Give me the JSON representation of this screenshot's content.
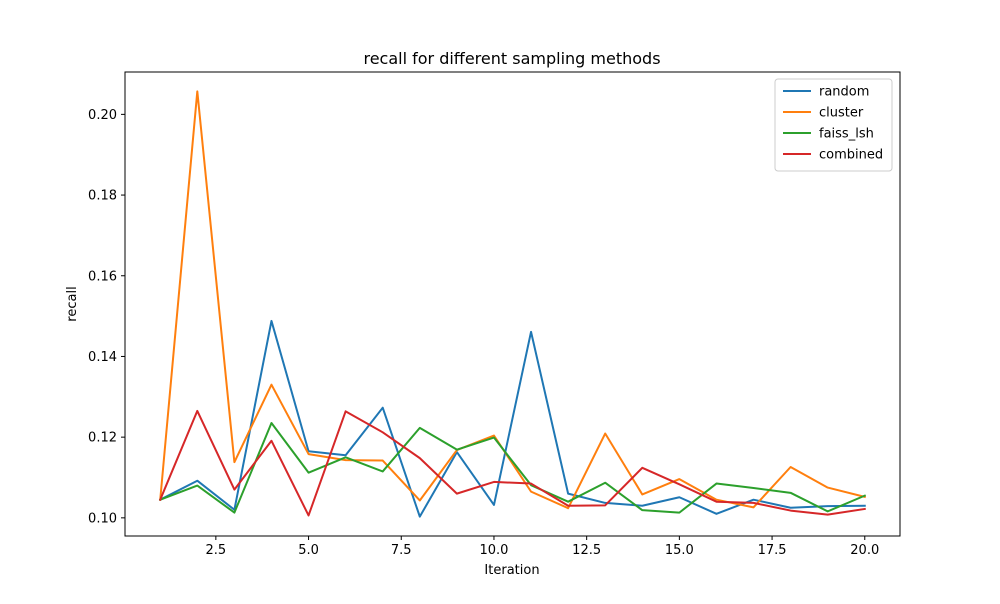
{
  "chart_data": {
    "type": "line",
    "title": "recall for different sampling methods",
    "xlabel": "Iteration",
    "ylabel": "recall",
    "xlim": [
      0.05,
      20.95
    ],
    "ylim": [
      0.0955,
      0.2105
    ],
    "xticks": [
      2.5,
      5.0,
      7.5,
      10.0,
      12.5,
      15.0,
      17.5,
      20.0
    ],
    "xtick_labels": [
      "2.5",
      "5.0",
      "7.5",
      "10.0",
      "12.5",
      "15.0",
      "17.5",
      "20.0"
    ],
    "yticks": [
      0.1,
      0.12,
      0.14,
      0.16,
      0.18,
      0.2
    ],
    "ytick_labels": [
      "0.10",
      "0.12",
      "0.14",
      "0.16",
      "0.18",
      "0.20"
    ],
    "grid": false,
    "legend_position": "upper right",
    "x": [
      1,
      2,
      3,
      4,
      5,
      6,
      7,
      8,
      9,
      10,
      11,
      12,
      13,
      14,
      15,
      16,
      17,
      18,
      19,
      20
    ],
    "series": [
      {
        "name": "random",
        "color": "#1f77b4",
        "values": [
          0.1045,
          0.1092,
          0.102,
          0.1488,
          0.1165,
          0.1155,
          0.1273,
          0.1003,
          0.1163,
          0.1032,
          0.1461,
          0.106,
          0.1037,
          0.103,
          0.1051,
          0.101,
          0.1045,
          0.1025,
          0.1029,
          0.103
        ]
      },
      {
        "name": "cluster",
        "color": "#ff7f0e",
        "values": [
          0.1045,
          0.2057,
          0.1138,
          0.133,
          0.1158,
          0.1143,
          0.1142,
          0.1043,
          0.1168,
          0.1204,
          0.1065,
          0.1024,
          0.1209,
          0.1058,
          0.1096,
          0.1045,
          0.1026,
          0.1126,
          0.1075,
          0.1052
        ]
      },
      {
        "name": "faiss_lsh",
        "color": "#2ca02c",
        "values": [
          0.1045,
          0.108,
          0.1013,
          0.1235,
          0.1112,
          0.115,
          0.1115,
          0.1223,
          0.1169,
          0.1199,
          0.1081,
          0.104,
          0.1087,
          0.1019,
          0.1013,
          0.1085,
          0.1074,
          0.1062,
          0.1016,
          0.1055
        ]
      },
      {
        "name": "combined",
        "color": "#d62728",
        "values": [
          0.1045,
          0.1265,
          0.107,
          0.1191,
          0.1006,
          0.1264,
          0.1212,
          0.1148,
          0.106,
          0.1089,
          0.1085,
          0.103,
          0.1031,
          0.1124,
          0.1083,
          0.104,
          0.1037,
          0.1018,
          0.1008,
          0.1022
        ]
      }
    ]
  }
}
